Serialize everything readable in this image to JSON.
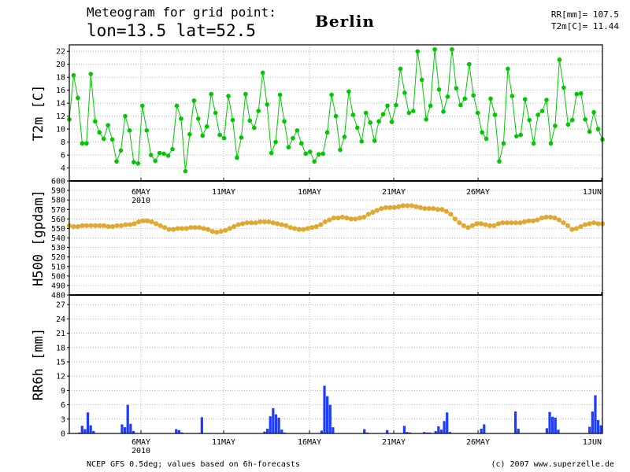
{
  "header": {
    "title_line1": "Meteogram for grid point:",
    "title_line2": "lon=13.5 lat=52.5",
    "location": "Berlin",
    "stat_rr": "RR[mm]= 107.5",
    "stat_t2m": "T2m[C]= 11.44"
  },
  "footer": {
    "source": "NCEP GFS 0.5deg; values based on 6h-forecasts",
    "credit": "(c) 2007 www.superzelle.de"
  },
  "colors": {
    "t2m": "#00c800",
    "h500": "#e0a830",
    "rr": "#1e3cff",
    "grid": "#b4b4b4"
  },
  "chart_data": [
    {
      "type": "line",
      "ylabel": "T2m [C]",
      "ylim": [
        2,
        23
      ],
      "y_ticks": [
        "4",
        "6",
        "8",
        "10",
        "12",
        "14",
        "16",
        "18",
        "20",
        "22"
      ],
      "x_labels": [
        "6MAY",
        "11MAY",
        "16MAY",
        "21MAY",
        "26MAY",
        "1JUN"
      ],
      "x_sublabel": "2010",
      "grid": true,
      "series": [
        {
          "values": [
            11.5,
            18.3,
            14.8,
            7.8,
            7.8,
            18.5,
            11.2,
            9.5,
            8.5,
            10.6,
            8.4,
            5.0,
            6.7,
            12.0,
            9.8,
            4.9,
            4.7,
            13.6,
            9.8,
            6.0,
            5.1,
            6.3,
            6.2,
            5.9,
            6.9,
            13.6,
            11.6,
            3.5,
            9.2,
            14.4,
            11.6,
            9.0,
            10.4,
            15.4,
            12.5,
            9.1,
            8.6,
            15.1,
            11.4,
            5.6,
            8.7,
            15.4,
            11.3,
            10.2,
            12.8,
            18.7,
            13.8,
            6.3,
            8.0,
            15.3,
            11.2,
            7.2,
            8.6,
            9.8,
            7.8,
            6.2,
            6.5,
            5.0,
            6.1,
            6.2,
            9.5,
            15.3,
            12.0,
            6.8,
            8.8,
            15.8,
            12.2,
            10.2,
            8.1,
            12.5,
            11.0,
            8.2,
            11.2,
            12.3,
            13.6,
            11.1,
            13.7,
            19.3,
            15.6,
            12.5,
            12.8,
            22.0,
            17.6,
            11.5,
            13.6,
            22.3,
            16.1,
            12.7,
            15.0,
            22.3,
            16.3,
            13.7,
            14.7,
            20.0,
            15.2,
            12.5,
            9.5,
            8.5,
            14.7,
            12.2,
            5.0,
            7.8,
            19.3,
            15.1,
            8.9,
            9.1,
            14.6,
            11.4,
            7.8,
            12.2,
            12.8,
            14.5,
            7.8,
            10.5,
            20.7,
            16.4,
            10.7,
            11.4,
            15.4,
            15.5,
            11.5,
            9.6,
            12.6,
            10.0,
            8.4
          ]
        }
      ]
    },
    {
      "type": "line",
      "ylabel": "H500 [gpdam]",
      "ylim": [
        480,
        600
      ],
      "y_ticks": [
        "480",
        "490",
        "500",
        "510",
        "520",
        "530",
        "540",
        "550",
        "560",
        "570",
        "580",
        "590",
        "600"
      ],
      "x_labels": [
        "6MAY",
        "11MAY",
        "16MAY",
        "21MAY",
        "26MAY",
        "1JUN"
      ],
      "grid": true,
      "series": [
        {
          "values": [
            553,
            552,
            552,
            553,
            553,
            553,
            553,
            553,
            553,
            552,
            552,
            553,
            553,
            554,
            554,
            555,
            557,
            558,
            558,
            557,
            555,
            553,
            551,
            549,
            549,
            550,
            550,
            550,
            551,
            551,
            551,
            550,
            549,
            547,
            546,
            547,
            548,
            550,
            552,
            554,
            555,
            556,
            556,
            556,
            557,
            557,
            557,
            556,
            555,
            554,
            553,
            551,
            550,
            549,
            549,
            550,
            551,
            552,
            554,
            557,
            559,
            561,
            561,
            562,
            561,
            560,
            560,
            561,
            562,
            565,
            567,
            569,
            571,
            572,
            572,
            572,
            573,
            574,
            574,
            574,
            573,
            572,
            571,
            571,
            571,
            570,
            570,
            568,
            565,
            560,
            556,
            553,
            551,
            553,
            555,
            555,
            554,
            553,
            553,
            555,
            556,
            556,
            556,
            556,
            556,
            557,
            558,
            558,
            559,
            561,
            562,
            562,
            561,
            559,
            556,
            553,
            549,
            550,
            552,
            554,
            555,
            556,
            555,
            555
          ]
        }
      ]
    },
    {
      "type": "bar",
      "ylabel": "RR6h [mm]",
      "ylim": [
        0,
        29
      ],
      "y_ticks": [
        "0",
        "3",
        "6",
        "9",
        "12",
        "15",
        "18",
        "21",
        "24",
        "27"
      ],
      "x_labels": [
        "6MAY",
        "11MAY",
        "16MAY",
        "21MAY",
        "26MAY",
        "1JUN"
      ],
      "x_sublabel": "2010",
      "grid": true,
      "series": [
        {
          "values": [
            0,
            0,
            0.1,
            0.2,
            1.6,
            0.9,
            4.4,
            1.7,
            0.5,
            0,
            0,
            0,
            0,
            0,
            0,
            0,
            0,
            0,
            1.9,
            1.3,
            6.0,
            2.0,
            0.5,
            0.1,
            0,
            0,
            0,
            0,
            0,
            0,
            0,
            0,
            0,
            0,
            0,
            0,
            0,
            0.9,
            0.7,
            0.2,
            0,
            0,
            0,
            0,
            0,
            0.1,
            3.4,
            0,
            0,
            0,
            0,
            0,
            0,
            0,
            0,
            0,
            0,
            0,
            0,
            0,
            0,
            0,
            0,
            0,
            0,
            0,
            0,
            0,
            0.4,
            1.0,
            3.6,
            5.3,
            4.0,
            3.3,
            0.8,
            0.2,
            0,
            0,
            0,
            0,
            0,
            0,
            0,
            0,
            0,
            0,
            0,
            0,
            0.6,
            10.0,
            7.8,
            6.0,
            1.3,
            0,
            0,
            0,
            0,
            0,
            0,
            0,
            0,
            0,
            0,
            0.9,
            0.2,
            0,
            0,
            0.1,
            0,
            0,
            0,
            0.7,
            0,
            0,
            0,
            0,
            0,
            1.6,
            0.3,
            0.2,
            0,
            0,
            0,
            0.1,
            0.3,
            0.2,
            0.2,
            0,
            0.5,
            1.5,
            0.8,
            2.6,
            4.4,
            0.3,
            0,
            0,
            0,
            0,
            0,
            0,
            0,
            0,
            0,
            0,
            1.0,
            1.9,
            0,
            0,
            0,
            0,
            0,
            0,
            0,
            0,
            0,
            0,
            4.6,
            1.0,
            0,
            0,
            0,
            0,
            0,
            0,
            0,
            0,
            0,
            1.1,
            4.5,
            3.5,
            3.3,
            0.8,
            0,
            0,
            0,
            0,
            0,
            0,
            0,
            0,
            0,
            0,
            1.4,
            4.6,
            8.0,
            2.8,
            1.7
          ]
        }
      ]
    }
  ]
}
